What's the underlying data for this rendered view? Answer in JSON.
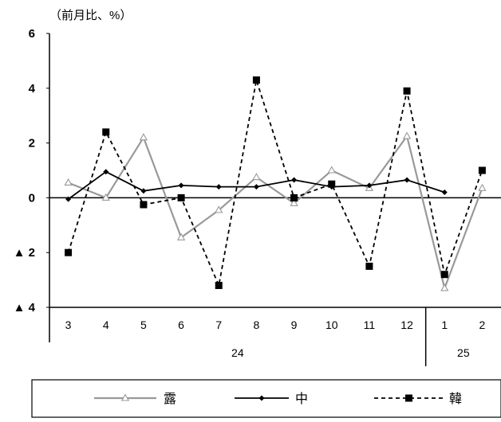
{
  "chart_data": {
    "type": "line",
    "unit_label": "（前月比、%）",
    "categories": [
      "3",
      "4",
      "5",
      "6",
      "7",
      "8",
      "9",
      "10",
      "11",
      "12",
      "1",
      "2"
    ],
    "year_groups": [
      {
        "label": "24",
        "span": [
          0,
          9
        ]
      },
      {
        "label": "25",
        "span": [
          10,
          11
        ]
      }
    ],
    "y_ticks": [
      {
        "value": 6,
        "label": "6"
      },
      {
        "value": 4,
        "label": "4"
      },
      {
        "value": 2,
        "label": "2"
      },
      {
        "value": 0,
        "label": "0"
      },
      {
        "value": -2,
        "label": "▲ 2"
      },
      {
        "value": -4,
        "label": "▲ 4"
      }
    ],
    "ylim": [
      -4,
      6
    ],
    "grid": false,
    "legend_position": "bottom",
    "series": [
      {
        "name": "露",
        "color": "#999999",
        "marker": "triangle-open",
        "dash": "solid",
        "values": [
          0.55,
          0.0,
          2.2,
          -1.45,
          -0.45,
          0.75,
          -0.2,
          1.0,
          0.35,
          2.25,
          -3.3,
          0.35
        ]
      },
      {
        "name": "中",
        "color": "#000000",
        "marker": "diamond",
        "dash": "solid",
        "values": [
          -0.05,
          0.95,
          0.25,
          0.45,
          0.4,
          0.4,
          0.65,
          0.4,
          0.45,
          0.65,
          0.2,
          null
        ]
      },
      {
        "name": "韓",
        "color": "#000000",
        "marker": "square",
        "dash": "dashed",
        "values": [
          -2.0,
          2.4,
          -0.25,
          0.0,
          -3.2,
          4.3,
          0.0,
          0.5,
          -2.5,
          3.9,
          -2.8,
          1.0
        ]
      }
    ]
  }
}
